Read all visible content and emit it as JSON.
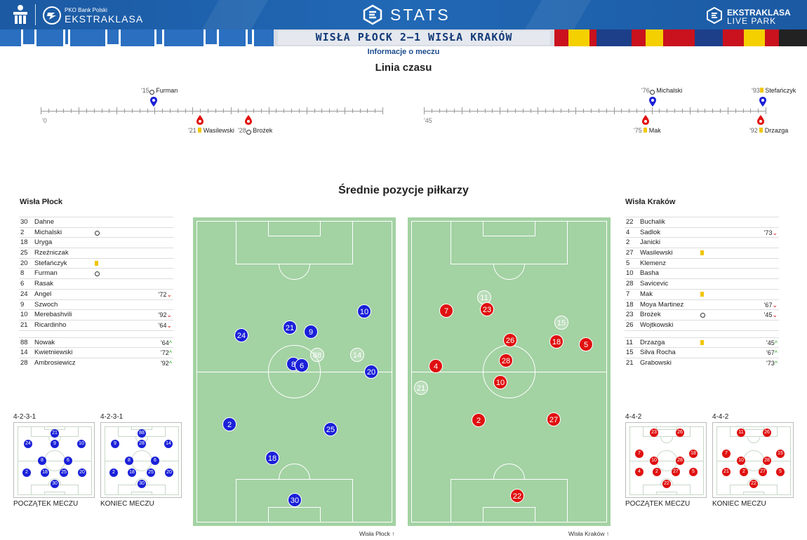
{
  "header": {
    "bank_small": "PKO Bank Polski",
    "league_name": "EKSTRAKLASA",
    "stats_label": "STATS",
    "live_park_1": "EKSTRAKLASA",
    "live_park_2": "LIVE PARK"
  },
  "match": {
    "title": "WISŁA PŁOCK 2–1 WISŁA KRAKÓW",
    "info_label": "Informacje o meczu"
  },
  "timeline": {
    "title": "Linia czasu",
    "first_half_start": "'0",
    "second_half_start": "'45",
    "events": [
      {
        "min": "'15",
        "name": "Furman",
        "team": "home",
        "type": "goal",
        "half": 1
      },
      {
        "min": "'21",
        "name": "Wasilewski",
        "team": "away",
        "type": "yellow",
        "half": 1
      },
      {
        "min": "'28",
        "name": "Brożek",
        "team": "away",
        "type": "goal",
        "half": 1
      },
      {
        "min": "'76",
        "name": "Michalski",
        "team": "home",
        "type": "goal",
        "half": 2
      },
      {
        "min": "'93",
        "name": "Stefańczyk",
        "team": "home",
        "type": "yellow",
        "half": 2
      },
      {
        "min": "'75",
        "name": "Mak",
        "team": "away",
        "type": "yellow",
        "half": 2
      },
      {
        "min": "'92",
        "name": "Drzazga",
        "team": "away",
        "type": "yellow",
        "half": 2
      }
    ]
  },
  "positions_title": "Średnie pozycje piłkarzy",
  "home": {
    "name": "Wisła Płock",
    "starters": [
      {
        "num": "30",
        "name": "Dahne",
        "icon": "",
        "sub": "",
        "dir": ""
      },
      {
        "num": "2",
        "name": "Michalski",
        "icon": "goal",
        "sub": "",
        "dir": ""
      },
      {
        "num": "18",
        "name": "Uryga",
        "icon": "",
        "sub": "",
        "dir": ""
      },
      {
        "num": "25",
        "name": "Rzeźniczak",
        "icon": "",
        "sub": "",
        "dir": ""
      },
      {
        "num": "20",
        "name": "Stefańczyk",
        "icon": "yellow",
        "sub": "",
        "dir": ""
      },
      {
        "num": "8",
        "name": "Furman",
        "icon": "goal",
        "sub": "",
        "dir": ""
      },
      {
        "num": "6",
        "name": "Rasak",
        "icon": "",
        "sub": "",
        "dir": ""
      },
      {
        "num": "24",
        "name": "Angel",
        "icon": "",
        "sub": "'72",
        "dir": "down"
      },
      {
        "num": "9",
        "name": "Szwoch",
        "icon": "",
        "sub": "",
        "dir": ""
      },
      {
        "num": "10",
        "name": "Merebashvili",
        "icon": "",
        "sub": "'92",
        "dir": "down"
      },
      {
        "num": "21",
        "name": "Ricardinho",
        "icon": "",
        "sub": "'64",
        "dir": "down"
      }
    ],
    "subs": [
      {
        "num": "88",
        "name": "Nowak",
        "icon": "",
        "sub": "'64",
        "dir": "up"
      },
      {
        "num": "14",
        "name": "Kwietniewski",
        "icon": "",
        "sub": "'72",
        "dir": "up"
      },
      {
        "num": "28",
        "name": "Ambrosiewicz",
        "icon": "",
        "sub": "'92",
        "dir": "up"
      }
    ],
    "pitch_label": "Wisła Płock",
    "formation_start": "4-2-3-1",
    "formation_end": "4-2-3-1",
    "caption_start": "POCZĄTEK MECZU",
    "caption_end": "KONIEC MECZU"
  },
  "away": {
    "name": "Wisła Kraków",
    "starters": [
      {
        "num": "22",
        "name": "Buchalik",
        "icon": "",
        "sub": "",
        "dir": ""
      },
      {
        "num": "4",
        "name": "Sadlok",
        "icon": "",
        "sub": "'73",
        "dir": "down"
      },
      {
        "num": "2",
        "name": "Janicki",
        "icon": "",
        "sub": "",
        "dir": ""
      },
      {
        "num": "27",
        "name": "Wasilewski",
        "icon": "yellow",
        "sub": "",
        "dir": ""
      },
      {
        "num": "5",
        "name": "Klemenz",
        "icon": "",
        "sub": "",
        "dir": ""
      },
      {
        "num": "10",
        "name": "Basha",
        "icon": "",
        "sub": "",
        "dir": ""
      },
      {
        "num": "28",
        "name": "Savicevic",
        "icon": "",
        "sub": "",
        "dir": ""
      },
      {
        "num": "7",
        "name": "Mak",
        "icon": "yellow",
        "sub": "",
        "dir": ""
      },
      {
        "num": "18",
        "name": "Moya Martinez",
        "icon": "",
        "sub": "'67",
        "dir": "down"
      },
      {
        "num": "23",
        "name": "Brożek",
        "icon": "goal",
        "sub": "'45",
        "dir": "down"
      },
      {
        "num": "26",
        "name": "Wojtkowski",
        "icon": "",
        "sub": "",
        "dir": ""
      }
    ],
    "subs": [
      {
        "num": "11",
        "name": "Drzazga",
        "icon": "yellow",
        "sub": "'45",
        "dir": "up"
      },
      {
        "num": "15",
        "name": "Silva Rocha",
        "icon": "",
        "sub": "'67",
        "dir": "up"
      },
      {
        "num": "21",
        "name": "Grabowski",
        "icon": "",
        "sub": "'73",
        "dir": "up"
      }
    ],
    "pitch_label": "Wisła Kraków",
    "formation_start": "4-4-2",
    "formation_end": "4-4-2",
    "caption_start": "POCZĄTEK MECZU",
    "caption_end": "KONIEC MECZU"
  },
  "colors": {
    "home": "#1a20d8",
    "away": "#e01010",
    "pitch": "#a3d2a3",
    "header": "#1f5fa8"
  }
}
